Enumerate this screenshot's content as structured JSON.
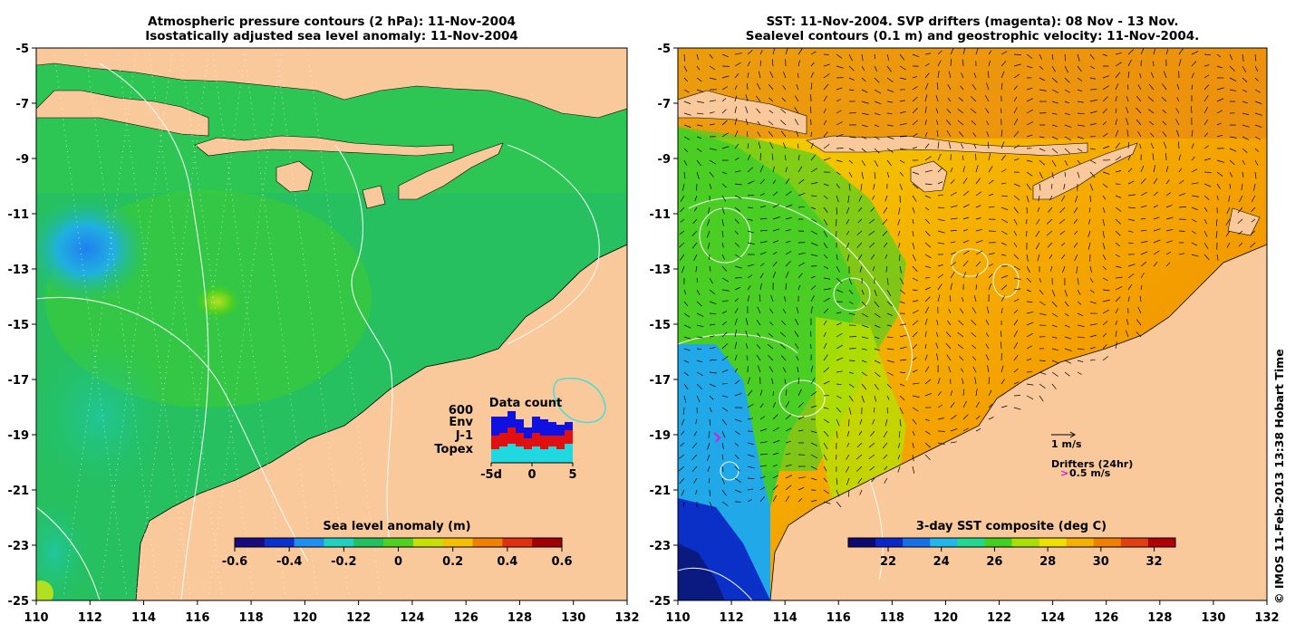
{
  "left_panel": {
    "title_line1": "Atmospheric pressure contours (2 hPa): 11-Nov-2004",
    "title_line2": "Isostatically adjusted sea level anomaly: 11-Nov-2004",
    "x_ticks": [
      "110",
      "112",
      "114",
      "116",
      "118",
      "120",
      "122",
      "124",
      "126",
      "128",
      "130",
      "132"
    ],
    "y_ticks": [
      "-5",
      "-7",
      "-9",
      "-11",
      "-13",
      "-15",
      "-17",
      "-19",
      "-21",
      "-23",
      "-25"
    ],
    "colorbar": {
      "title": "Sea level anomaly (m)",
      "ticks": [
        "-0.6",
        "-0.4",
        "-0.2",
        "0",
        "0.2",
        "0.4",
        "0.6"
      ],
      "range": [
        -0.6,
        0.6
      ],
      "colors": [
        "#1a0a80",
        "#0a30d0",
        "#1f90f0",
        "#20d0c0",
        "#20c060",
        "#50d020",
        "#c8e000",
        "#f5c000",
        "#f08000",
        "#e03010",
        "#a00000"
      ]
    },
    "data_count": {
      "title": "Data count",
      "max_label": "600",
      "legend": [
        {
          "label": "Env",
          "color": "#1010e0"
        },
        {
          "label": "J-1",
          "color": "#e01010"
        },
        {
          "label": "Topex",
          "color": "#20d8e0"
        }
      ],
      "x_ticks": [
        "-5d",
        "0",
        "5"
      ],
      "bars": [
        {
          "topex": 0.25,
          "j1": 0.25,
          "env": 0.35
        },
        {
          "topex": 0.3,
          "j1": 0.25,
          "env": 0.3
        },
        {
          "topex": 0.35,
          "j1": 0.3,
          "env": 0.3
        },
        {
          "topex": 0.3,
          "j1": 0.25,
          "env": 0.25
        },
        {
          "topex": 0.25,
          "j1": 0.2,
          "env": 0.2
        },
        {
          "topex": 0.3,
          "j1": 0.25,
          "env": 0.3
        },
        {
          "topex": 0.25,
          "j1": 0.25,
          "env": 0.3
        },
        {
          "topex": 0.3,
          "j1": 0.2,
          "env": 0.25
        },
        {
          "topex": 0.25,
          "j1": 0.25,
          "env": 0.2
        },
        {
          "topex": 0.35,
          "j1": 0.25,
          "env": 0.15
        }
      ]
    }
  },
  "right_panel": {
    "title_line1": "SST: 11-Nov-2004. SVP drifters (magenta): 08 Nov - 13 Nov.",
    "title_line2": "Sealevel contours (0.1 m) and geostrophic velocity: 11-Nov-2004.",
    "x_ticks": [
      "110",
      "112",
      "114",
      "116",
      "118",
      "120",
      "122",
      "124",
      "126",
      "128",
      "130",
      "132"
    ],
    "y_ticks": [
      "-5",
      "-7",
      "-9",
      "-11",
      "-13",
      "-15",
      "-17",
      "-19",
      "-21",
      "-23",
      "-25"
    ],
    "colorbar": {
      "title": "3-day SST composite (deg C)",
      "ticks": [
        "22",
        "24",
        "26",
        "28",
        "30",
        "32"
      ],
      "range": [
        20.5,
        32.8
      ],
      "colors": [
        "#0a0a70",
        "#0a28c8",
        "#1870e8",
        "#20b8e8",
        "#20d890",
        "#40d020",
        "#a8e000",
        "#f0e000",
        "#f5b000",
        "#f08000",
        "#e04010",
        "#b00000"
      ]
    },
    "scale_label": "1 m/s",
    "drifters_label": "Drifters (24hr)",
    "drifter_speed": "0.5 m/s",
    "drifter_glyph": ">"
  },
  "credit": "© IMOS 11-Feb-2013 13:38 Hobart Time"
}
